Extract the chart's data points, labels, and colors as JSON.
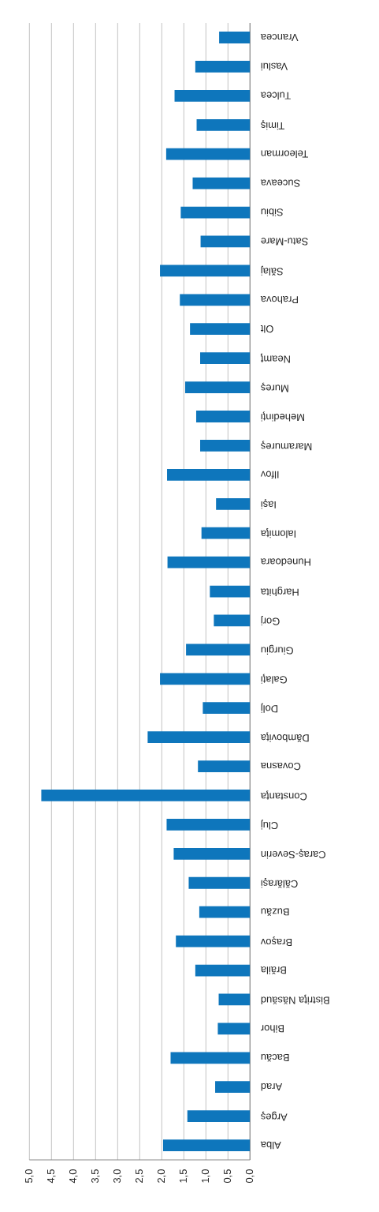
{
  "chart_data": {
    "type": "bar",
    "orientation": "horizontal",
    "categories": [
      "Vrancea",
      "Vaslui",
      "Tulcea",
      "Timiş",
      "Teleorman",
      "Suceava",
      "Sibiu",
      "Satu-Mare",
      "Sălaj",
      "Prahova",
      "Olt",
      "Neamţ",
      "Mureş",
      "Mehedinţi",
      "Maramureş",
      "Ilfov",
      "Iaşi",
      "Ialomiţa",
      "Hunedoara",
      "Harghita",
      "Gorj",
      "Giurgiu",
      "Galaţi",
      "Dolj",
      "Dămboviţa",
      "Covasna",
      "Constanţa",
      "Cluj",
      "Caraş-Severin",
      "Călăraşi",
      "Buzău",
      "Braşov",
      "Brăila",
      "Bistriţa Năsăud",
      "Bihor",
      "Bacău",
      "Arad",
      "Argeş",
      "Alba"
    ],
    "values": [
      0.7,
      1.24,
      1.71,
      1.21,
      1.9,
      1.3,
      1.57,
      1.12,
      2.04,
      1.59,
      1.36,
      1.13,
      1.47,
      1.22,
      1.13,
      1.88,
      0.77,
      1.1,
      1.87,
      0.91,
      0.82,
      1.45,
      2.04,
      1.07,
      2.32,
      1.18,
      4.73,
      1.89,
      1.73,
      1.39,
      1.15,
      1.68,
      1.24,
      0.71,
      0.73,
      1.8,
      0.79,
      1.42,
      1.97
    ],
    "color": "#0e76bc",
    "xlim": [
      5,
      0
    ],
    "xticks": [
      {
        "value": 0,
        "label": "0,0"
      },
      {
        "value": 0.5,
        "label": "0,5"
      },
      {
        "value": 1,
        "label": "1,0"
      },
      {
        "value": 1.5,
        "label": "1,5"
      },
      {
        "value": 2,
        "label": "2,0"
      },
      {
        "value": 2.5,
        "label": "2,5"
      },
      {
        "value": 3,
        "label": "3,0"
      },
      {
        "value": 3.5,
        "label": "3,5"
      },
      {
        "value": 4,
        "label": "4,0"
      },
      {
        "value": 4.5,
        "label": "4,5"
      },
      {
        "value": 5,
        "label": "5,0"
      }
    ],
    "grid": "x"
  }
}
